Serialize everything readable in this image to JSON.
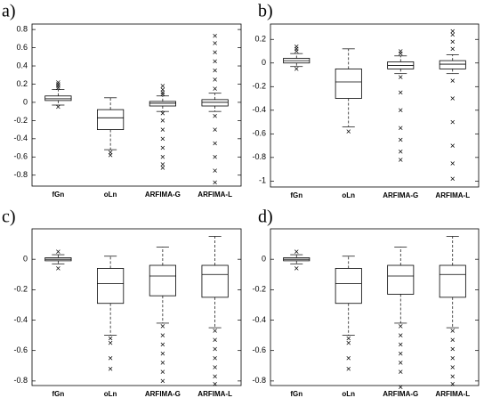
{
  "chart_data": [
    {
      "type": "box",
      "label": "a)",
      "categories": [
        "fGn",
        "oLn",
        "ARFIMA-G",
        "ARFIMA-L"
      ],
      "ylim": [
        -0.92,
        0.86
      ],
      "yticks": [
        -0.8,
        -0.6,
        -0.4,
        -0.2,
        0,
        0.2,
        0.4,
        0.6,
        0.8
      ],
      "boxes": [
        {
          "whislo": -0.03,
          "q1": 0.02,
          "median": 0.04,
          "q3": 0.07,
          "whishi": 0.14,
          "outliers": [
            0.16,
            0.18,
            0.2,
            0.22,
            -0.05
          ]
        },
        {
          "whislo": -0.52,
          "q1": -0.3,
          "median": -0.17,
          "q3": -0.08,
          "whishi": 0.05,
          "outliers": [
            -0.55,
            -0.58
          ]
        },
        {
          "whislo": -0.1,
          "q1": -0.04,
          "median": -0.01,
          "q3": 0.01,
          "whishi": 0.07,
          "outliers": [
            0.09,
            0.11,
            0.14,
            0.18,
            -0.12,
            -0.2,
            -0.3,
            -0.4,
            -0.5,
            -0.6,
            -0.68,
            -0.72
          ]
        },
        {
          "whislo": -0.1,
          "q1": -0.04,
          "median": 0,
          "q3": 0.03,
          "whishi": 0.1,
          "outliers": [
            0.15,
            0.25,
            0.35,
            0.45,
            0.55,
            0.65,
            0.73,
            -0.15,
            -0.3,
            -0.45,
            -0.6,
            -0.75,
            -0.88
          ]
        }
      ]
    },
    {
      "type": "box",
      "label": "b)",
      "categories": [
        "fGn",
        "oLn",
        "ARFIMA-G",
        "ARFIMA-L"
      ],
      "ylim": [
        -1.05,
        0.33
      ],
      "yticks": [
        -1,
        -0.8,
        -0.6,
        -0.4,
        -0.2,
        0,
        0.2
      ],
      "boxes": [
        {
          "whislo": -0.03,
          "q1": 0,
          "median": 0.02,
          "q3": 0.04,
          "whishi": 0.08,
          "outliers": [
            0.1,
            0.12,
            0.14,
            -0.05
          ]
        },
        {
          "whislo": -0.54,
          "q1": -0.3,
          "median": -0.16,
          "q3": -0.05,
          "whishi": 0.12,
          "outliers": [
            -0.58
          ]
        },
        {
          "whislo": -0.09,
          "q1": -0.05,
          "median": -0.02,
          "q3": 0.01,
          "whishi": 0.06,
          "outliers": [
            0.08,
            0.1,
            -0.12,
            -0.25,
            -0.4,
            -0.55,
            -0.65,
            -0.75,
            -0.82
          ]
        },
        {
          "whislo": -0.09,
          "q1": -0.05,
          "median": -0.01,
          "q3": 0.02,
          "whishi": 0.07,
          "outliers": [
            0.12,
            0.18,
            0.24,
            0.27,
            -0.15,
            -0.3,
            -0.5,
            -0.7,
            -0.85,
            -0.98
          ]
        }
      ]
    },
    {
      "type": "box",
      "label": "c)",
      "categories": [
        "fGn",
        "oLn",
        "ARFIMA-G",
        "ARFIMA-L"
      ],
      "ylim": [
        -0.83,
        0.2
      ],
      "yticks": [
        -0.8,
        -0.6,
        -0.4,
        -0.2,
        0
      ],
      "boxes": [
        {
          "whislo": -0.03,
          "q1": -0.01,
          "median": 0,
          "q3": 0.01,
          "whishi": 0.03,
          "outliers": [
            0.05,
            -0.06
          ]
        },
        {
          "whislo": -0.5,
          "q1": -0.29,
          "median": -0.16,
          "q3": -0.06,
          "whishi": 0.02,
          "outliers": [
            -0.52,
            -0.55,
            -0.65,
            -0.72
          ]
        },
        {
          "whislo": -0.42,
          "q1": -0.24,
          "median": -0.11,
          "q3": -0.04,
          "whishi": 0.08,
          "outliers": [
            -0.44,
            -0.5,
            -0.56,
            -0.62,
            -0.68,
            -0.74,
            -0.8
          ]
        },
        {
          "whislo": -0.45,
          "q1": -0.25,
          "median": -0.1,
          "q3": -0.04,
          "whishi": 0.15,
          "outliers": [
            -0.47,
            -0.53,
            -0.59,
            -0.65,
            -0.71,
            -0.77,
            -0.82
          ]
        }
      ]
    },
    {
      "type": "box",
      "label": "d)",
      "categories": [
        "fGn",
        "oLn",
        "ARFIMA-G",
        "ARFIMA-L"
      ],
      "ylim": [
        -0.83,
        0.2
      ],
      "yticks": [
        -0.8,
        -0.6,
        -0.4,
        -0.2,
        0
      ],
      "boxes": [
        {
          "whislo": -0.03,
          "q1": -0.01,
          "median": 0,
          "q3": 0.01,
          "whishi": 0.03,
          "outliers": [
            0.05,
            -0.06
          ]
        },
        {
          "whislo": -0.5,
          "q1": -0.29,
          "median": -0.16,
          "q3": -0.06,
          "whishi": 0.02,
          "outliers": [
            -0.52,
            -0.55,
            -0.65,
            -0.72
          ]
        },
        {
          "whislo": -0.42,
          "q1": -0.23,
          "median": -0.11,
          "q3": -0.04,
          "whishi": 0.08,
          "outliers": [
            -0.44,
            -0.5,
            -0.56,
            -0.62,
            -0.68,
            -0.74,
            -0.84
          ]
        },
        {
          "whislo": -0.45,
          "q1": -0.25,
          "median": -0.1,
          "q3": -0.04,
          "whishi": 0.15,
          "outliers": [
            -0.47,
            -0.53,
            -0.59,
            -0.65,
            -0.71,
            -0.77,
            -0.82
          ]
        }
      ]
    }
  ]
}
